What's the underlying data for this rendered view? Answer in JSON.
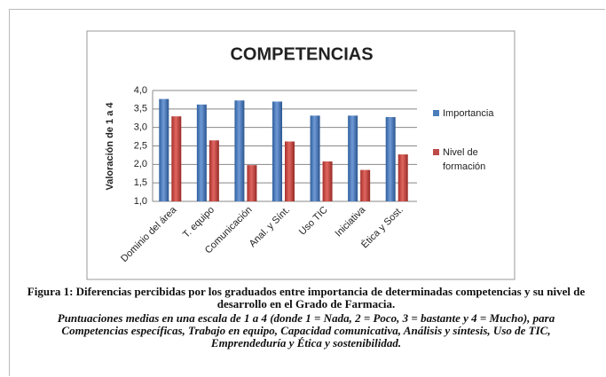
{
  "chart_data": {
    "type": "bar",
    "title": "COMPETENCIAS",
    "y_label": "Valoración de 1 a 4",
    "categories": [
      "Dominio del área",
      "T. equipo",
      "Comunicación",
      "Anal. y Sínt.",
      "Uso TIC",
      "Iniciativa",
      "Ética y Sost."
    ],
    "series": [
      {
        "name": "Importancia",
        "color": "#4a7ebb",
        "values": [
          3.77,
          3.62,
          3.73,
          3.7,
          3.32,
          3.32,
          3.28
        ]
      },
      {
        "name": "Nivel de formación",
        "color": "#be4b48",
        "values": [
          3.3,
          2.65,
          1.98,
          2.62,
          2.08,
          1.85,
          2.27
        ]
      }
    ],
    "ylim": [
      1,
      4
    ],
    "yticks": [
      {
        "value": 1,
        "label": "1,0"
      },
      {
        "value": 1.5,
        "label": "1,5"
      },
      {
        "value": 2,
        "label": "2,0"
      },
      {
        "value": 2.5,
        "label": "2,5"
      },
      {
        "value": 3,
        "label": "3,0"
      },
      {
        "value": 3.5,
        "label": "3,5"
      },
      {
        "value": 4,
        "label": "4,0"
      }
    ],
    "grid": true,
    "legend": "right",
    "caption": "Figura 1: Diferencias percibidas por los graduados entre importancia de determinadas competencias y su nivel de desarrollo en el Grado de Farmacia.",
    "note": "Puntuaciones medias en una escala de 1 a 4 (donde 1 = Nada, 2 = Poco, 3 = bastante y 4 = Mucho), para Competencias específicas, Trabajo en equipo, Capacidad comunicativa, Análisis y síntesis, Uso de TIC, Emprendeduría  y Ética y sostenibilidad."
  }
}
